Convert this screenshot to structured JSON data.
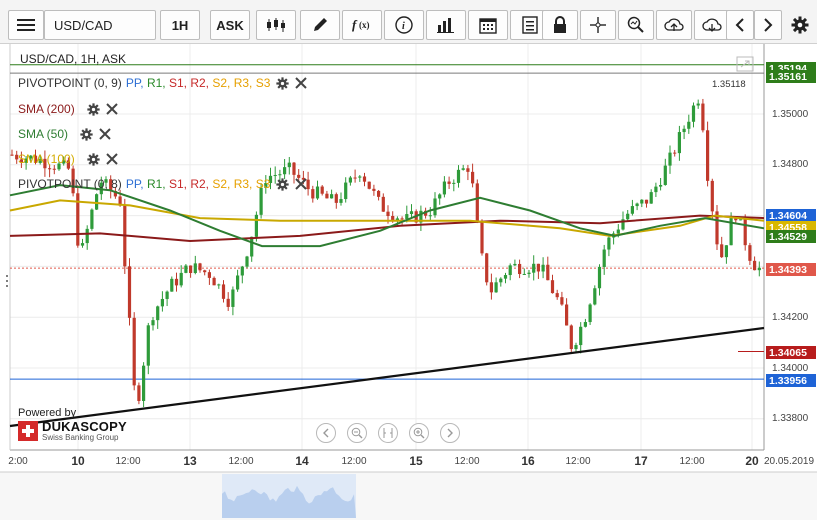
{
  "toolbar": {
    "symbol": "USD/CAD",
    "timeframe": "1H",
    "side": "ASK",
    "icons": [
      "menu-icon",
      "candles-icon",
      "pencil-icon",
      "function-icon",
      "info-icon",
      "bars-icon",
      "calendar-icon",
      "list-icon",
      "lock-icon",
      "crosshair-icon",
      "zoom-icon",
      "upload-icon",
      "download-icon",
      "prev-icon",
      "next-icon",
      "gear-icon"
    ]
  },
  "chart": {
    "title": "USD/CAD, 1H, ASK",
    "powered_by": "Powered by",
    "brand": "DUKASCOPY",
    "brand_sub": "Swiss Banking Group",
    "current_price_line": "1.35118"
  },
  "indicators": {
    "pivot1_name": "PIVOTPOINT (0, 9)",
    "sma200": "SMA (200)",
    "sma50": "SMA (50)",
    "sma100": "SMA (100)",
    "pivot2_name": "PIVOTPOINT (0, 8)",
    "pp_labels": [
      "PP,",
      "R1,",
      "S1,",
      "R2,",
      "S2,",
      "R3,",
      "S3"
    ],
    "pp_colors": [
      "#2e6fd4",
      "#2a8a2a",
      "#c62828",
      "#c62828",
      "#e6a000",
      "#e6a000",
      "#e6a000"
    ]
  },
  "price_tags": [
    {
      "text": "1.35194",
      "color": "#2e7d1a"
    },
    {
      "text": "1.35161",
      "color": "#2e7d1a"
    },
    {
      "text": "1.34604",
      "color": "#1e63d6"
    },
    {
      "text": "1.34558",
      "color": "#d9b700"
    },
    {
      "text": "1.34529",
      "color": "#2e7d1a"
    },
    {
      "text": "1.34393",
      "color": "#e0574a"
    },
    {
      "text": "1.34065",
      "color": "#b71c1c"
    },
    {
      "text": "1.33956",
      "color": "#1e63d6"
    }
  ],
  "y_ticks": [
    "1.35000",
    "1.34800",
    "1.34200",
    "1.34000",
    "1.33800"
  ],
  "x_ticks": [
    {
      "label": "2:00",
      "day": false
    },
    {
      "label": "10",
      "day": true
    },
    {
      "label": "12:00",
      "day": false
    },
    {
      "label": "13",
      "day": true
    },
    {
      "label": "12:00",
      "day": false
    },
    {
      "label": "14",
      "day": true
    },
    {
      "label": "12:00",
      "day": false
    },
    {
      "label": "15",
      "day": true
    },
    {
      "label": "12:00",
      "day": false
    },
    {
      "label": "16",
      "day": true
    },
    {
      "label": "12:00",
      "day": false
    },
    {
      "label": "17",
      "day": true
    },
    {
      "label": "12:00",
      "day": false
    },
    {
      "label": "20",
      "day": true
    },
    {
      "label": "20.05.2019",
      "day": false
    }
  ]
}
